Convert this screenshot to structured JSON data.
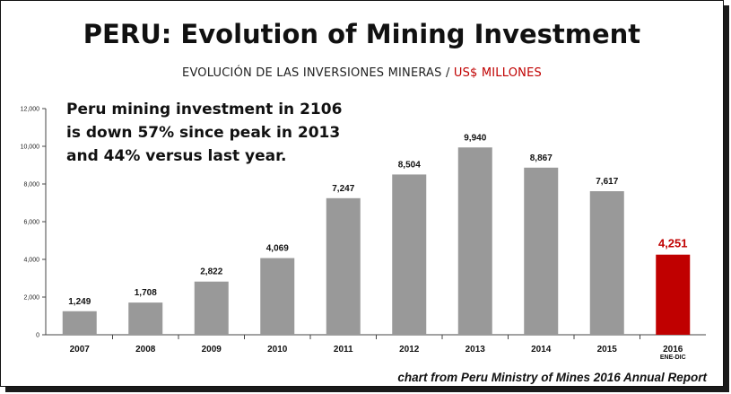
{
  "chart_data": {
    "type": "bar",
    "title": "PERU: Evolution of Mining Investment",
    "subtitle": "EVOLUCIÓN DE LAS INVERSIONES MINERAS /",
    "subtitle_unit": "US$ MILLONES",
    "annotation": [
      "Peru mining investment in 2106",
      "is down 57% since peak in 2013",
      "and 44% versus last year."
    ],
    "source": "chart from Peru Ministry of Mines 2016 Annual Report",
    "categories": [
      "2007",
      "2008",
      "2009",
      "2010",
      "2011",
      "2012",
      "2013",
      "2014",
      "2015",
      "2016"
    ],
    "category_sublabels": [
      "",
      "",
      "",
      "",
      "",
      "",
      "",
      "",
      "",
      "ENE-DIC"
    ],
    "values": [
      1249,
      1708,
      2822,
      4069,
      7247,
      8504,
      9940,
      8867,
      7617,
      4251
    ],
    "value_labels": [
      "1,249",
      "1,708",
      "2,822",
      "4,069",
      "7,247",
      "8,504",
      "9,940",
      "8,867",
      "7,617",
      "4,251"
    ],
    "highlight_index": 9,
    "ylim": [
      0,
      12000
    ],
    "yticks": [
      0,
      2000,
      4000,
      6000,
      8000,
      10000,
      12000
    ],
    "ytick_labels": [
      "0",
      "2,000",
      "4,000",
      "6,000",
      "8,000",
      "10,000",
      "12,000"
    ],
    "xlabel": "",
    "ylabel": "",
    "grid": false,
    "colors": {
      "bar": "#999999",
      "highlight": "#c00000"
    }
  }
}
